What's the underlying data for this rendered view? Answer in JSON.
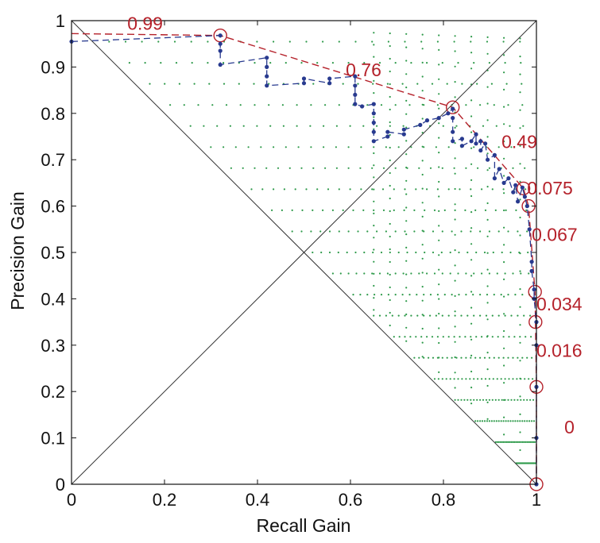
{
  "chart_data": {
    "type": "scatter",
    "title": "",
    "xlabel": "Recall Gain",
    "ylabel": "Precision Gain",
    "xlim": [
      0,
      1
    ],
    "ylim": [
      0,
      1
    ],
    "x_ticks": [
      "0",
      "0.2",
      "0.4",
      "0.6",
      "0.8",
      "1"
    ],
    "y_ticks": [
      "0",
      "0.1",
      "0.2",
      "0.3",
      "0.4",
      "0.5",
      "0.6",
      "0.7",
      "0.8",
      "0.9",
      "1"
    ],
    "grid": false,
    "colors": {
      "curve": "#283a8f",
      "hull": "#b5222b",
      "threshold_labels": "#b5222b",
      "background_points": "#2e9a4a",
      "reference_lines": "#333333"
    },
    "pg_curve": [
      [
        0.0,
        0.955
      ],
      [
        0.32,
        0.968
      ],
      [
        0.32,
        0.95
      ],
      [
        0.32,
        0.935
      ],
      [
        0.32,
        0.905
      ],
      [
        0.42,
        0.92
      ],
      [
        0.42,
        0.9
      ],
      [
        0.42,
        0.88
      ],
      [
        0.42,
        0.86
      ],
      [
        0.5,
        0.865
      ],
      [
        0.5,
        0.875
      ],
      [
        0.555,
        0.865
      ],
      [
        0.555,
        0.875
      ],
      [
        0.61,
        0.88
      ],
      [
        0.61,
        0.86
      ],
      [
        0.61,
        0.84
      ],
      [
        0.61,
        0.82
      ],
      [
        0.625,
        0.815
      ],
      [
        0.65,
        0.82
      ],
      [
        0.65,
        0.8
      ],
      [
        0.65,
        0.78
      ],
      [
        0.65,
        0.76
      ],
      [
        0.65,
        0.74
      ],
      [
        0.68,
        0.75
      ],
      [
        0.68,
        0.76
      ],
      [
        0.715,
        0.755
      ],
      [
        0.715,
        0.765
      ],
      [
        0.75,
        0.775
      ],
      [
        0.765,
        0.785
      ],
      [
        0.79,
        0.79
      ],
      [
        0.81,
        0.8
      ],
      [
        0.82,
        0.81
      ],
      [
        0.82,
        0.79
      ],
      [
        0.82,
        0.76
      ],
      [
        0.82,
        0.74
      ],
      [
        0.84,
        0.745
      ],
      [
        0.84,
        0.73
      ],
      [
        0.86,
        0.74
      ],
      [
        0.87,
        0.755
      ],
      [
        0.87,
        0.735
      ],
      [
        0.88,
        0.74
      ],
      [
        0.88,
        0.72
      ],
      [
        0.89,
        0.735
      ],
      [
        0.895,
        0.7
      ],
      [
        0.91,
        0.71
      ],
      [
        0.91,
        0.66
      ],
      [
        0.92,
        0.68
      ],
      [
        0.93,
        0.65
      ],
      [
        0.94,
        0.66
      ],
      [
        0.95,
        0.63
      ],
      [
        0.955,
        0.645
      ],
      [
        0.96,
        0.61
      ],
      [
        0.97,
        0.64
      ],
      [
        0.975,
        0.62
      ],
      [
        0.98,
        0.6
      ],
      [
        0.985,
        0.55
      ],
      [
        0.99,
        0.48
      ],
      [
        0.99,
        0.46
      ],
      [
        0.995,
        0.42
      ],
      [
        0.995,
        0.4
      ],
      [
        1.0,
        0.35
      ],
      [
        1.0,
        0.3
      ],
      [
        1.0,
        0.21
      ],
      [
        1.0,
        0.1
      ],
      [
        1.0,
        0.0
      ]
    ],
    "hull_points": [
      [
        0.32,
        0.968
      ],
      [
        0.82,
        0.813
      ],
      [
        0.972,
        0.638
      ],
      [
        0.983,
        0.6
      ],
      [
        0.997,
        0.415
      ],
      [
        0.998,
        0.35
      ],
      [
        1.0,
        0.21
      ],
      [
        1.0,
        0.0
      ]
    ],
    "threshold_labels": [
      {
        "text": "0.99",
        "x": 0.12,
        "y": 0.98
      },
      {
        "text": "0.76",
        "x": 0.59,
        "y": 0.88
      },
      {
        "text": "0.49",
        "x": 0.925,
        "y": 0.725
      },
      {
        "text": "0.075",
        "x": 0.98,
        "y": 0.625
      },
      {
        "text": "0.067",
        "x": 0.99,
        "y": 0.525
      },
      {
        "text": "0.034",
        "x": 1.0,
        "y": 0.375
      },
      {
        "text": "0.016",
        "x": 1.0,
        "y": 0.275
      },
      {
        "text": "0",
        "x": 1.06,
        "y": 0.11
      }
    ]
  }
}
